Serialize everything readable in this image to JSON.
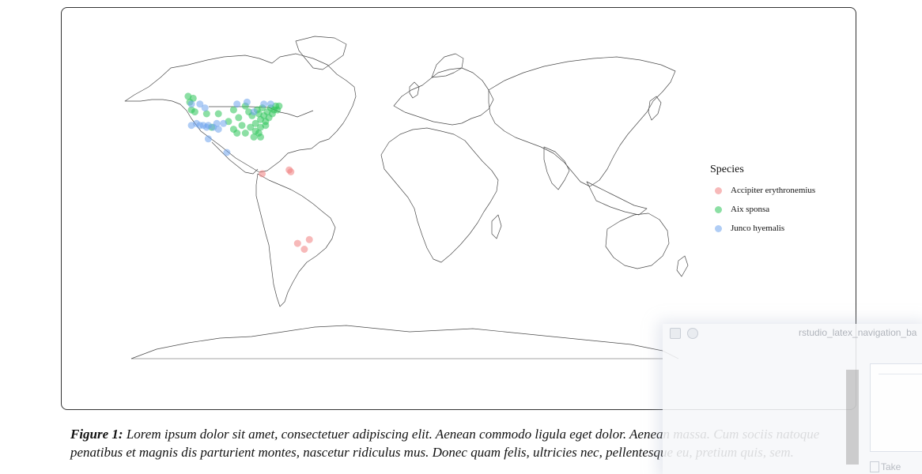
{
  "legend": {
    "title": "Species",
    "items": [
      {
        "label": "Accipiter erythronemius",
        "color": "#f08080"
      },
      {
        "label": "Aix sponsa",
        "color": "#2ec45a"
      },
      {
        "label": "Junco hyemalis",
        "color": "#6fa4ec"
      }
    ]
  },
  "caption": {
    "label": "Figure 1:",
    "text": " Lorem ipsum dolor sit amet, consectetuer adipiscing elit. Aenean commodo ligula eget dolor. Aenean massa. Cum sociis natoque penatibus et magnis dis parturient montes, nascetur ridiculus mus. Donec quam felis, ultricies nec, pellentesque eu, pretium quis, sem."
  },
  "overlay": {
    "window_title": "rstudio_latex_navigation_ba",
    "take_label": "Take"
  },
  "occurrences": [
    {
      "species": "Accipiter erythronemius",
      "lon": -80,
      "lat": 9
    },
    {
      "species": "Accipiter erythronemius",
      "lon": -64,
      "lat": 11
    },
    {
      "species": "Accipiter erythronemius",
      "lon": -63,
      "lat": 10
    },
    {
      "species": "Accipiter erythronemius",
      "lon": -59,
      "lat": -27
    },
    {
      "species": "Accipiter erythronemius",
      "lon": -52,
      "lat": -25
    },
    {
      "species": "Accipiter erythronemius",
      "lon": -55,
      "lat": -30
    },
    {
      "species": "Aix sponsa",
      "lon": -124,
      "lat": 49
    },
    {
      "species": "Aix sponsa",
      "lon": -121,
      "lat": 48
    },
    {
      "species": "Aix sponsa",
      "lon": -123,
      "lat": 46
    },
    {
      "species": "Aix sponsa",
      "lon": -122,
      "lat": 42
    },
    {
      "species": "Aix sponsa",
      "lon": -120,
      "lat": 41
    },
    {
      "species": "Aix sponsa",
      "lon": -113,
      "lat": 40
    },
    {
      "species": "Aix sponsa",
      "lon": -106,
      "lat": 40
    },
    {
      "species": "Aix sponsa",
      "lon": -100,
      "lat": 36
    },
    {
      "species": "Aix sponsa",
      "lon": -97,
      "lat": 42
    },
    {
      "species": "Aix sponsa",
      "lon": -94,
      "lat": 38
    },
    {
      "species": "Aix sponsa",
      "lon": -92,
      "lat": 34
    },
    {
      "species": "Aix sponsa",
      "lon": -90,
      "lat": 44
    },
    {
      "species": "Aix sponsa",
      "lon": -88,
      "lat": 41
    },
    {
      "species": "Aix sponsa",
      "lon": -86,
      "lat": 39
    },
    {
      "species": "Aix sponsa",
      "lon": -84,
      "lat": 35
    },
    {
      "species": "Aix sponsa",
      "lon": -83,
      "lat": 42
    },
    {
      "species": "Aix sponsa",
      "lon": -82,
      "lat": 40
    },
    {
      "species": "Aix sponsa",
      "lon": -81,
      "lat": 37
    },
    {
      "species": "Aix sponsa",
      "lon": -80,
      "lat": 43
    },
    {
      "species": "Aix sponsa",
      "lon": -79,
      "lat": 39
    },
    {
      "species": "Aix sponsa",
      "lon": -78,
      "lat": 36
    },
    {
      "species": "Aix sponsa",
      "lon": -77,
      "lat": 41
    },
    {
      "species": "Aix sponsa",
      "lon": -76,
      "lat": 38
    },
    {
      "species": "Aix sponsa",
      "lon": -75,
      "lat": 43
    },
    {
      "species": "Aix sponsa",
      "lon": -74,
      "lat": 40
    },
    {
      "species": "Aix sponsa",
      "lon": -73,
      "lat": 42
    },
    {
      "species": "Aix sponsa",
      "lon": -72,
      "lat": 44
    },
    {
      "species": "Aix sponsa",
      "lon": -71,
      "lat": 42
    },
    {
      "species": "Aix sponsa",
      "lon": -70,
      "lat": 44
    },
    {
      "species": "Aix sponsa",
      "lon": -81,
      "lat": 33
    },
    {
      "species": "Aix sponsa",
      "lon": -82,
      "lat": 30
    },
    {
      "species": "Aix sponsa",
      "lon": -84,
      "lat": 31
    },
    {
      "species": "Aix sponsa",
      "lon": -81,
      "lat": 28
    },
    {
      "species": "Aix sponsa",
      "lon": -90,
      "lat": 30
    },
    {
      "species": "Aix sponsa",
      "lon": -95,
      "lat": 30
    },
    {
      "species": "Aix sponsa",
      "lon": -97,
      "lat": 32
    },
    {
      "species": "Aix sponsa",
      "lon": -87,
      "lat": 33
    },
    {
      "species": "Aix sponsa",
      "lon": -78,
      "lat": 34
    },
    {
      "species": "Aix sponsa",
      "lon": -110,
      "lat": 33
    },
    {
      "species": "Aix sponsa",
      "lon": -85,
      "lat": 28
    },
    {
      "species": "Junco hyemalis",
      "lon": -122,
      "lat": 45
    },
    {
      "species": "Junco hyemalis",
      "lon": -117,
      "lat": 45
    },
    {
      "species": "Junco hyemalis",
      "lon": -114,
      "lat": 43
    },
    {
      "species": "Junco hyemalis",
      "lon": -122,
      "lat": 34
    },
    {
      "species": "Junco hyemalis",
      "lon": -119,
      "lat": 35
    },
    {
      "species": "Junco hyemalis",
      "lon": -117,
      "lat": 34
    },
    {
      "species": "Junco hyemalis",
      "lon": -115,
      "lat": 34
    },
    {
      "species": "Junco hyemalis",
      "lon": -113,
      "lat": 33
    },
    {
      "species": "Junco hyemalis",
      "lon": -112,
      "lat": 34
    },
    {
      "species": "Junco hyemalis",
      "lon": -109,
      "lat": 33
    },
    {
      "species": "Junco hyemalis",
      "lon": -106,
      "lat": 32
    },
    {
      "species": "Junco hyemalis",
      "lon": -107,
      "lat": 35
    },
    {
      "species": "Junco hyemalis",
      "lon": -103,
      "lat": 35
    },
    {
      "species": "Junco hyemalis",
      "lon": -112,
      "lat": 27
    },
    {
      "species": "Junco hyemalis",
      "lon": -101,
      "lat": 20
    },
    {
      "species": "Junco hyemalis",
      "lon": -95,
      "lat": 45
    },
    {
      "species": "Junco hyemalis",
      "lon": -89,
      "lat": 46
    },
    {
      "species": "Junco hyemalis",
      "lon": -85,
      "lat": 41
    },
    {
      "species": "Junco hyemalis",
      "lon": -79,
      "lat": 45
    },
    {
      "species": "Junco hyemalis",
      "lon": -75,
      "lat": 45
    }
  ]
}
